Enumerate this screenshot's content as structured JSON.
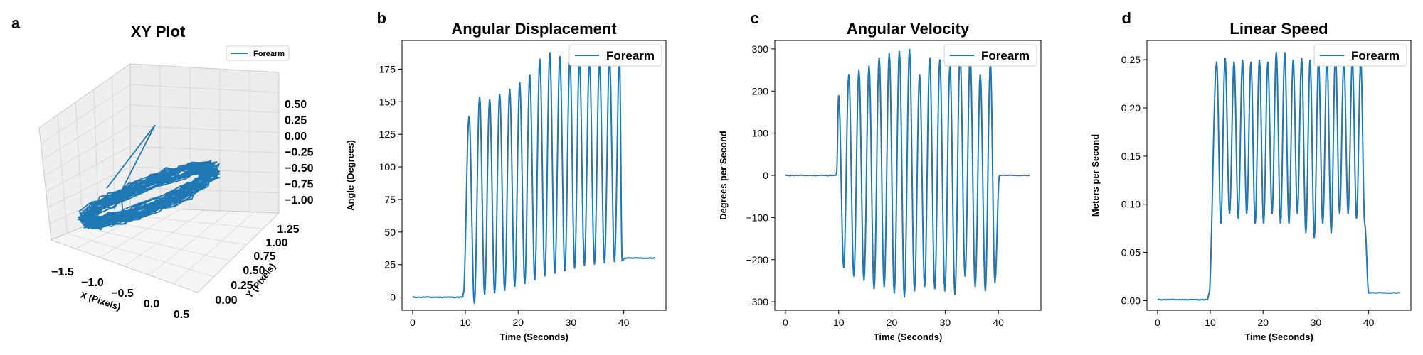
{
  "color": "#1f77b4",
  "panels": [
    {
      "label": "a",
      "title": "XY Plot",
      "type": "line3d",
      "xlabel": "X (Pixels)",
      "ylabel": "Y (Pixels)",
      "xticks": [
        "−1.5",
        "−1.0",
        "−0.5",
        "0.0",
        "0.5"
      ],
      "yticks": [
        "0.00",
        "0.25",
        "0.50",
        "0.75",
        "1.00",
        "1.25"
      ],
      "zticks": [
        "0.50",
        "0.25",
        "0.00",
        "−0.25",
        "−0.50",
        "−0.75",
        "−1.00"
      ],
      "legend": "Forearm"
    },
    {
      "label": "b",
      "title": "Angular Displacement",
      "ylabel": "Angle (Degrees)",
      "xlabel": "Time (Seconds)",
      "legend": "Forearm"
    },
    {
      "label": "c",
      "title": "Angular Velocity",
      "ylabel": "Degrees per Second",
      "xlabel": "Time (Seconds)",
      "legend": "Forearm"
    },
    {
      "label": "d",
      "title": "Linear Speed",
      "ylabel": "Meters per Second",
      "xlabel": "Time (Seconds)",
      "legend": "Forearm"
    }
  ],
  "chart_data": [
    {
      "type": "line",
      "title": "Angular Displacement",
      "xlabel": "Time (Seconds)",
      "ylabel": "Angle (Degrees)",
      "xlim": [
        -2,
        48
      ],
      "ylim": [
        -10,
        197
      ],
      "xticks": [
        0,
        10,
        20,
        30,
        40
      ],
      "yticks": [
        0,
        25,
        50,
        75,
        100,
        125,
        150,
        175
      ],
      "series": [
        {
          "name": "Forearm",
          "baseline": 0,
          "onset": 9.6,
          "offset": 40.2,
          "after": 30,
          "end": 46,
          "peak_times": [
            10.7,
            12.7,
            14.6,
            16.5,
            18.4,
            20.3,
            22.2,
            24.1,
            26.0,
            27.9,
            29.8,
            31.6,
            33.5,
            35.4,
            37.3,
            39.2
          ],
          "peaks": [
            139,
            154,
            152,
            156,
            160,
            165,
            171,
            183,
            188,
            185,
            184,
            183,
            182,
            181,
            183,
            185
          ],
          "troughs": [
            -5,
            2,
            3,
            5,
            8,
            10,
            13,
            16,
            18,
            20,
            22,
            24,
            25,
            26,
            27,
            28
          ]
        }
      ],
      "legend": "upper right"
    },
    {
      "type": "line",
      "title": "Angular Velocity",
      "xlabel": "Time (Seconds)",
      "ylabel": "Degrees per Second",
      "xlim": [
        -2,
        48
      ],
      "ylim": [
        -320,
        320
      ],
      "xticks": [
        0,
        10,
        20,
        30,
        40
      ],
      "yticks": [
        -300,
        -200,
        -100,
        0,
        100,
        200,
        300
      ],
      "series": [
        {
          "name": "Forearm",
          "baseline": 0,
          "onset": 9.6,
          "offset": 40.2,
          "after": 0,
          "end": 46,
          "peak_times": [
            10.0,
            11.9,
            13.8,
            15.7,
            17.6,
            19.5,
            21.4,
            23.3,
            25.2,
            27.1,
            29.0,
            30.9,
            32.8,
            34.7,
            36.6,
            38.5
          ],
          "peaks": [
            190,
            240,
            250,
            260,
            280,
            290,
            295,
            300,
            240,
            280,
            275,
            260,
            290,
            285,
            240,
            270
          ],
          "troughs": [
            -220,
            -240,
            -250,
            -270,
            -265,
            -280,
            -290,
            -275,
            -265,
            -270,
            -275,
            -285,
            -240,
            -265,
            -275,
            -255
          ]
        }
      ],
      "legend": "upper right"
    },
    {
      "type": "line",
      "title": "Linear Speed",
      "xlabel": "Time (Seconds)",
      "ylabel": "Meters per Second",
      "xlim": [
        -2,
        48
      ],
      "ylim": [
        -0.01,
        0.27
      ],
      "xticks": [
        0,
        10,
        20,
        30,
        40
      ],
      "yticks": [
        0.0,
        0.05,
        0.1,
        0.15,
        0.2,
        0.25
      ],
      "series": [
        {
          "name": "Forearm",
          "baseline": 0.001,
          "onset": 9.7,
          "offset": 40.0,
          "after": 0.008,
          "end": 46,
          "peak_times": [
            11.2,
            12.8,
            14.5,
            16.1,
            17.7,
            19.3,
            20.9,
            22.5,
            24.1,
            25.7,
            27.3,
            28.9,
            30.5,
            32.1,
            33.7,
            35.3,
            36.9,
            38.5
          ],
          "peaks": [
            0.248,
            0.252,
            0.248,
            0.25,
            0.248,
            0.25,
            0.248,
            0.258,
            0.258,
            0.25,
            0.252,
            0.25,
            0.25,
            0.252,
            0.258,
            0.25,
            0.25,
            0.25
          ],
          "troughs": [
            0.08,
            0.09,
            0.085,
            0.09,
            0.08,
            0.08,
            0.09,
            0.08,
            0.08,
            0.09,
            0.07,
            0.065,
            0.08,
            0.07,
            0.09,
            0.09,
            0.085,
            0.08
          ]
        }
      ],
      "legend": "upper right"
    }
  ]
}
